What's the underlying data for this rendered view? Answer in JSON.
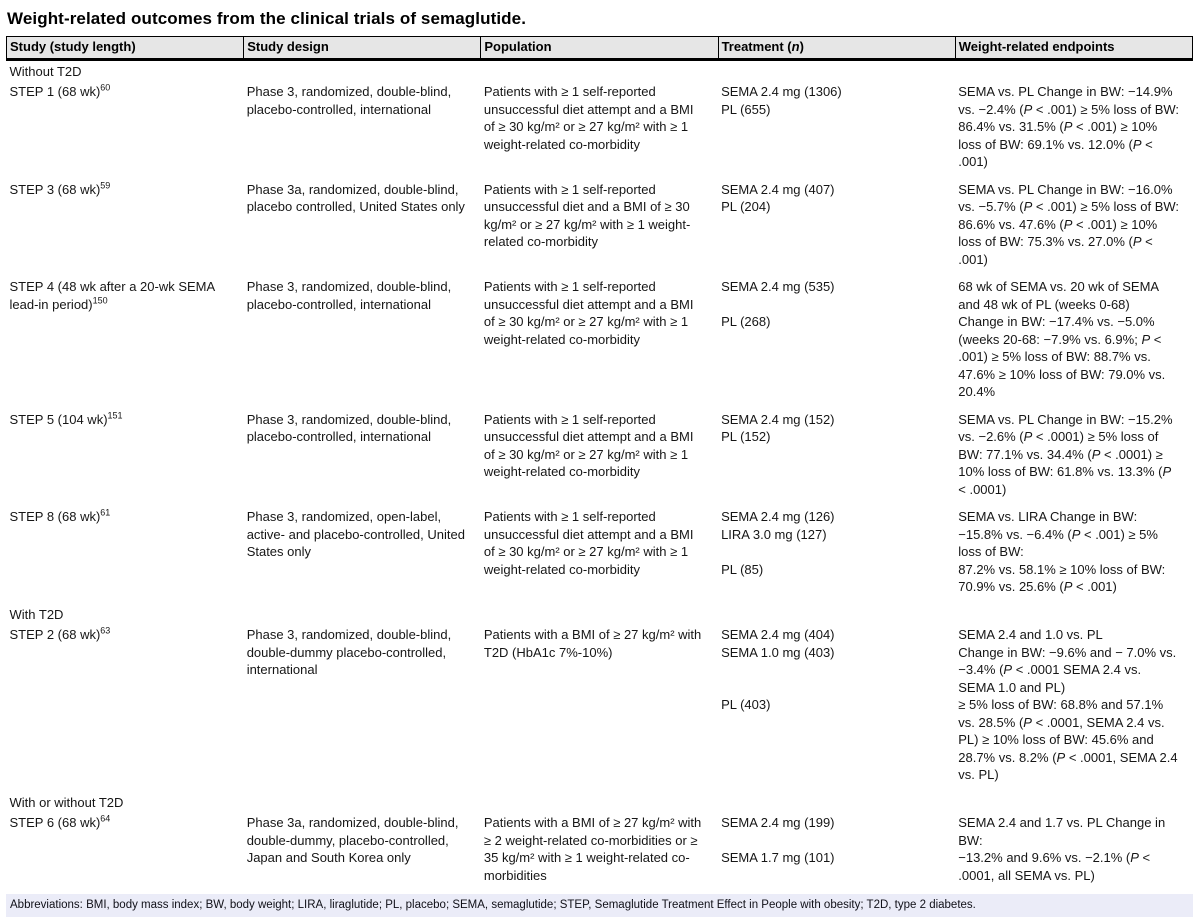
{
  "title": "Weight-related outcomes from the clinical trials of semaglutide.",
  "table": {
    "columns": [
      "Study (study length)",
      "Study design",
      "Population",
      "Treatment (n)",
      "Weight-related endpoints"
    ],
    "rows": [
      {
        "type": "section",
        "label": "Without T2D"
      },
      {
        "type": "study",
        "study": "STEP 1 (68 wk)",
        "ref": "60",
        "design": "Phase 3, randomized, double-blind, placebo-controlled, international",
        "population": "Patients with ≥ 1 self-reported unsuccessful diet attempt and a BMI of ≥ 30 kg/m² or ≥ 27 kg/m² with ≥ 1 weight-related co-morbidity",
        "treatment": [
          "SEMA 2.4 mg (1306)",
          "PL (655)"
        ],
        "endpoints": "SEMA vs. PL Change in BW: −14.9% vs. −2.4% (P < .001) ≥ 5% loss of BW: 86.4% vs. 31.5% (P < .001) ≥ 10% loss of BW: 69.1% vs. 12.0% (P < .001)"
      },
      {
        "type": "study",
        "study": "STEP 3 (68 wk)",
        "ref": "59",
        "design": "Phase 3a, randomized, double-blind, placebo controlled, United States only",
        "population": "Patients with ≥ 1 self-reported unsuccessful diet and a BMI of ≥ 30 kg/m² or ≥ 27 kg/m² with ≥ 1 weight-related co-morbidity",
        "treatment": [
          "SEMA 2.4 mg (407)",
          "PL (204)"
        ],
        "endpoints": "SEMA vs. PL Change in BW: −16.0% vs. −5.7% (P < .001) ≥ 5% loss of BW: 86.6% vs. 47.6% (P < .001) ≥ 10% loss of BW: 75.3% vs. 27.0% (P < .001)"
      },
      {
        "type": "study",
        "study": "STEP 4 (48 wk after a 20-wk SEMA lead-in period)",
        "ref": "150",
        "design": "Phase 3, randomized, double-blind, placebo-controlled, international",
        "population": "Patients with ≥ 1 self-reported unsuccessful diet attempt and a BMI of ≥ 30 kg/m² or ≥ 27 kg/m² with ≥ 1 weight-related co-morbidity",
        "treatment": [
          "SEMA 2.4 mg (535)",
          " ",
          "PL (268)"
        ],
        "endpoints": "68 wk of SEMA vs. 20 wk of SEMA and 48 wk of PL (weeks 0-68)\nChange in BW: −17.4% vs. −5.0% (weeks 20-68: −7.9% vs. 6.9%; P < .001) ≥ 5% loss of BW: 88.7% vs. 47.6% ≥ 10% loss of BW: 79.0% vs. 20.4%"
      },
      {
        "type": "study",
        "study": "STEP 5 (104 wk)",
        "ref": "151",
        "design": "Phase 3, randomized, double-blind, placebo-controlled, international",
        "population": "Patients with ≥ 1 self-reported unsuccessful diet attempt and a BMI of ≥ 30 kg/m² or ≥ 27 kg/m² with ≥ 1 weight-related co-morbidity",
        "treatment": [
          "SEMA 2.4 mg (152)",
          "PL (152)"
        ],
        "endpoints": "SEMA vs. PL Change in BW: −15.2% vs. −2.6% (P < .0001) ≥ 5% loss of BW: 77.1% vs. 34.4% (P < .0001) ≥ 10% loss of BW: 61.8% vs. 13.3% (P < .0001)"
      },
      {
        "type": "study",
        "study": "STEP 8 (68 wk)",
        "ref": "61",
        "design": "Phase 3, randomized, open-label, active- and placebo-controlled, United States only",
        "population": "Patients with ≥ 1 self-reported unsuccessful diet attempt and a BMI of ≥ 30 kg/m² or ≥ 27 kg/m² with ≥ 1 weight-related co-morbidity",
        "treatment": [
          "SEMA 2.4 mg (126)",
          "LIRA 3.0 mg (127)",
          " ",
          "PL (85)"
        ],
        "endpoints": "SEMA vs. LIRA Change in BW: −15.8% vs. −6.4% (P < .001) ≥ 5% loss of BW:\n87.2% vs. 58.1% ≥ 10% loss of BW: 70.9% vs. 25.6% (P < .001)"
      },
      {
        "type": "section",
        "label": "With T2D"
      },
      {
        "type": "study",
        "study": "STEP 2 (68 wk)",
        "ref": "63",
        "design": "Phase 3, randomized, double-blind, double-dummy placebo-controlled, international",
        "population": "Patients with a BMI of ≥ 27 kg/m² with T2D (HbA1c 7%-10%)",
        "treatment": [
          "SEMA 2.4 mg (404)",
          "SEMA 1.0 mg (403)",
          " ",
          " ",
          "PL (403)"
        ],
        "endpoints": "SEMA 2.4 and 1.0 vs. PL\nChange in BW: −9.6% and − 7.0% vs. −3.4% (P < .0001 SEMA 2.4 vs. SEMA 1.0 and PL)\n≥ 5% loss of BW: 68.8% and 57.1% vs. 28.5% (P < .0001, SEMA 2.4 vs. PL) ≥ 10% loss of BW: 45.6% and 28.7% vs. 8.2% (P < .0001, SEMA 2.4 vs. PL)"
      },
      {
        "type": "section",
        "label": "With or without T2D"
      },
      {
        "type": "study",
        "study": "STEP 6 (68 wk)",
        "ref": "64",
        "design": "Phase 3a, randomized, double-blind, double-dummy, placebo-controlled, Japan and South Korea only",
        "population": "Patients with a BMI of ≥ 27 kg/m² with ≥ 2 weight-related co-morbidities or ≥ 35 kg/m² with ≥ 1 weight-related co-morbidities",
        "treatment": [
          "SEMA 2.4 mg (199)",
          " ",
          "SEMA 1.7 mg (101)"
        ],
        "endpoints": "SEMA 2.4 and 1.7 vs. PL Change in BW:\n−13.2% and 9.6% vs. −2.1% (P < .0001, all SEMA vs. PL)"
      }
    ]
  },
  "footer": {
    "abbreviations": "Abbreviations: BMI, body mass index; BW, body weight; LIRA, liraglutide; PL, placebo; SEMA, semaglutide; STEP, Semaglutide Treatment Effect in People with obesity; T2D, type 2 diabetes."
  },
  "colors": {
    "header_bg": "#e6e6e6",
    "footer_bg": "#ebecf8",
    "text": "#161616"
  }
}
